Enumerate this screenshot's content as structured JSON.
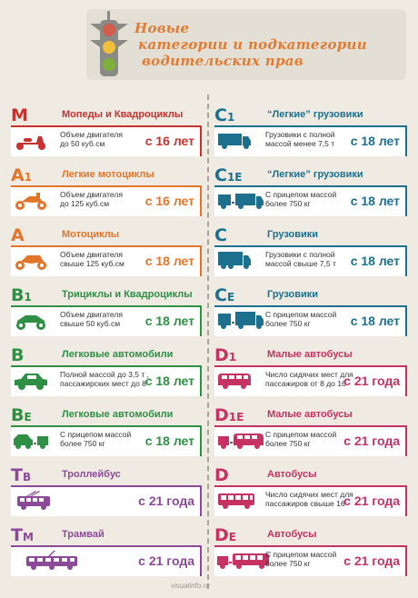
{
  "header": {
    "title_line1": "Новые",
    "title_line2": "категории и подкатегории",
    "title_line3": "водительских прав"
  },
  "watermark": "visualinfo.ru",
  "colors": {
    "red": "#c7322f",
    "orange": "#e3752a",
    "green": "#2f8f45",
    "purple": "#8b4a97",
    "blue": "#1d6f8e",
    "pink": "#c63363",
    "background": "#efebe3"
  },
  "left": [
    {
      "letter": "M",
      "sub": "",
      "name": "Мопеды и Квадроциклы",
      "desc_1": "Объем двигателя",
      "desc_2": "до 50 куб.см",
      "age": "с 16 лет",
      "icon": "scooter-icon"
    },
    {
      "letter": "A",
      "sub": "1",
      "name": "Легкие мотоциклы",
      "desc_1": "Объем двигателя",
      "desc_2": "до 125 куб.см",
      "age": "с 16 лет",
      "icon": "light-motorcycle-icon"
    },
    {
      "letter": "A",
      "sub": "",
      "name": "Мотоциклы",
      "desc_1": "Объем двигателя",
      "desc_2": "свыше 125 куб.см",
      "age": "с 18 лет",
      "icon": "motorcycle-icon"
    },
    {
      "letter": "B",
      "sub": "1",
      "name": "Трициклы и Квадроциклы",
      "desc_1": "Объем двигателя",
      "desc_2": "свыше 50 куб.см",
      "age": "с 18 лет",
      "icon": "quad-bike-icon"
    },
    {
      "letter": "B",
      "sub": "",
      "name": "Легковые автомобили",
      "desc_1": "Полной массой до 3,5 т ,",
      "desc_2": "пассажирских мест до 8",
      "age": "с 18 лет",
      "icon": "car-icon"
    },
    {
      "letter": "B",
      "sub": "E",
      "name": "Легковые автомобили",
      "desc_1": "С прицепом массой",
      "desc_2": "более 750 кг",
      "age": "с 18 лет",
      "icon": "car-trailer-icon"
    },
    {
      "letter": "T",
      "sub": "B",
      "name": "Троллейбус",
      "desc_1": "",
      "desc_2": "",
      "age": "с 21 года",
      "icon": "trolleybus-icon"
    },
    {
      "letter": "T",
      "sub": "M",
      "name": "Трамвай",
      "desc_1": "",
      "desc_2": "",
      "age": "с 21 года",
      "icon": "tram-icon"
    }
  ],
  "right": [
    {
      "letter": "C",
      "sub": "1",
      "name": "“Легкие” грузовики",
      "desc_1": "Грузовики с полной",
      "desc_2": "массой менее 7,5 т",
      "age": "с 18 лет",
      "icon": "light-truck-icon"
    },
    {
      "letter": "C",
      "sub": "1E",
      "name": "“Легкие” грузовики",
      "desc_1": "С прицепом массой",
      "desc_2": "более 750 кг",
      "age": "с 18 лет",
      "icon": "light-truck-trailer-icon"
    },
    {
      "letter": "C",
      "sub": "",
      "name": "Грузовики",
      "desc_1": "Грузовики с полной",
      "desc_2": "массой свыше 7,5 т",
      "age": "с 18 лет",
      "icon": "truck-icon"
    },
    {
      "letter": "C",
      "sub": "E",
      "name": "Грузовики",
      "desc_1": "С прицепом массой",
      "desc_2": "более 750 кг",
      "age": "с 18 лет",
      "icon": "truck-trailer-icon"
    },
    {
      "letter": "D",
      "sub": "1",
      "name": "Малые автобусы",
      "desc_1": "Число сидячих мест для",
      "desc_2": "пассажиров от 8 до 16",
      "age": "с 21 года",
      "icon": "minibus-icon"
    },
    {
      "letter": "D",
      "sub": "1E",
      "name": "Малые автобусы",
      "desc_1": "С прицепом массой",
      "desc_2": "более 750 кг",
      "age": "с 21 года",
      "icon": "minibus-trailer-icon"
    },
    {
      "letter": "D",
      "sub": "",
      "name": "Автобусы",
      "desc_1": "Число сидячих мест для",
      "desc_2": "пассажиров свыше 16",
      "age": "с 21 года",
      "icon": "bus-icon"
    },
    {
      "letter": "D",
      "sub": "E",
      "name": "Автобусы",
      "desc_1": "С прицепом массой",
      "desc_2": "более 750 кг",
      "age": "с 21 года",
      "icon": "bus-trailer-icon"
    }
  ]
}
